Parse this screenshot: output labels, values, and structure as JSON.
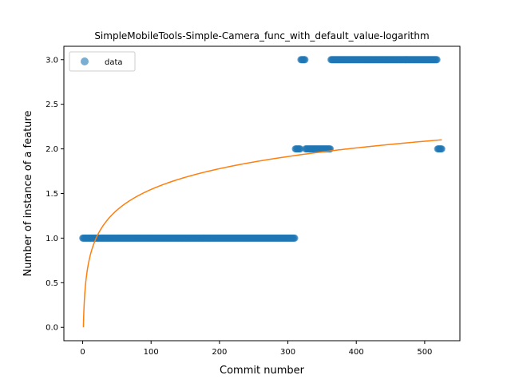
{
  "chart_data": {
    "type": "scatter",
    "title": "SimpleMobileTools-Simple-Camera_func_with_default_value-logarithm",
    "xlabel": "Commit number",
    "ylabel": "Number of instance of a feature",
    "xlim": [
      -27.5,
      551.5
    ],
    "ylim": [
      -0.15,
      3.15
    ],
    "xticks": [
      0,
      100,
      200,
      300,
      400,
      500
    ],
    "yticks": [
      0.0,
      0.5,
      1.0,
      1.5,
      2.0,
      2.5,
      3.0
    ],
    "grid": false,
    "legend_position": "top-left",
    "series": [
      {
        "name": "data",
        "kind": "points",
        "color": "#1f77b4",
        "segments": [
          {
            "x_start": 0,
            "x_end": 310,
            "y": 1.0
          },
          {
            "x_start": 311,
            "x_end": 318,
            "y": 2.0
          },
          {
            "x_start": 319,
            "x_end": 325,
            "y": 3.0
          },
          {
            "x_start": 326,
            "x_end": 362,
            "y": 2.0
          },
          {
            "x_start": 363,
            "x_end": 518,
            "y": 3.0
          },
          {
            "x_start": 519,
            "x_end": 525,
            "y": 2.0
          }
        ]
      },
      {
        "name": "",
        "kind": "fit",
        "color": "#ff7f0e",
        "model": "a + b*ln(x)",
        "a": 0.0,
        "b": 0.3356,
        "x_start": 1,
        "x_end": 525
      }
    ]
  }
}
